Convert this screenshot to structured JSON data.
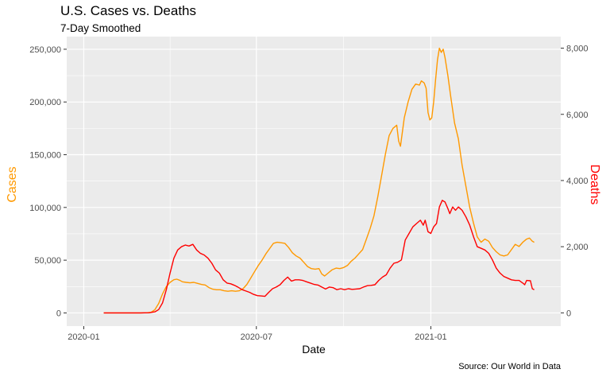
{
  "chart_data": {
    "type": "line",
    "title": "U.S. Cases vs. Deaths",
    "subtitle": "7-Day Smoothed",
    "caption": "Source:  Our World in Data",
    "xlabel": "Date",
    "ylabel_left": "Cases",
    "ylabel_right": "Deaths",
    "x_ticks": [
      "2020-01",
      "2020-07",
      "2021-01"
    ],
    "y_left_ticks": [
      "0",
      "50,000",
      "100,000",
      "150,000",
      "200,000",
      "250,000"
    ],
    "y_right_ticks": [
      "0",
      "2,000",
      "4,000",
      "6,000",
      "8,000"
    ],
    "xlim": [
      "2019-12-14",
      "2021-05-18"
    ],
    "ylim_left": [
      -12500,
      262000
    ],
    "ylim_right": [
      -400,
      8350
    ],
    "grid": true,
    "colors": {
      "cases": "#FF9900",
      "deaths": "#FF0000",
      "panel": "#EBEBEB",
      "grid": "#FFFFFF"
    },
    "series": [
      {
        "axis": "left",
        "color": "#FF9900",
        "points": [
          [
            "2020-01-22",
            0
          ],
          [
            "2020-02-15",
            0
          ],
          [
            "2020-03-01",
            5
          ],
          [
            "2020-03-08",
            150
          ],
          [
            "2020-03-12",
            600
          ],
          [
            "2020-03-16",
            3000
          ],
          [
            "2020-03-20",
            9000
          ],
          [
            "2020-03-24",
            18000
          ],
          [
            "2020-03-28",
            25000
          ],
          [
            "2020-04-01",
            29000
          ],
          [
            "2020-04-05",
            31500
          ],
          [
            "2020-04-08",
            32000
          ],
          [
            "2020-04-11",
            31000
          ],
          [
            "2020-04-14",
            29500
          ],
          [
            "2020-04-18",
            29000
          ],
          [
            "2020-04-22",
            28500
          ],
          [
            "2020-04-26",
            29000
          ],
          [
            "2020-04-30",
            28000
          ],
          [
            "2020-05-04",
            27000
          ],
          [
            "2020-05-08",
            26500
          ],
          [
            "2020-05-12",
            24000
          ],
          [
            "2020-05-16",
            22500
          ],
          [
            "2020-05-20",
            22000
          ],
          [
            "2020-05-24",
            22000
          ],
          [
            "2020-05-28",
            21000
          ],
          [
            "2020-06-01",
            20500
          ],
          [
            "2020-06-05",
            21000
          ],
          [
            "2020-06-09",
            20500
          ],
          [
            "2020-06-13",
            21000
          ],
          [
            "2020-06-17",
            23000
          ],
          [
            "2020-06-21",
            27000
          ],
          [
            "2020-06-25",
            33000
          ],
          [
            "2020-06-29",
            39000
          ],
          [
            "2020-07-03",
            45000
          ],
          [
            "2020-07-07",
            50000
          ],
          [
            "2020-07-11",
            56000
          ],
          [
            "2020-07-15",
            61000
          ],
          [
            "2020-07-19",
            66000
          ],
          [
            "2020-07-23",
            67000
          ],
          [
            "2020-07-27",
            66500
          ],
          [
            "2020-07-31",
            66000
          ],
          [
            "2020-08-04",
            62000
          ],
          [
            "2020-08-08",
            57000
          ],
          [
            "2020-08-12",
            54000
          ],
          [
            "2020-08-16",
            52000
          ],
          [
            "2020-08-20",
            48000
          ],
          [
            "2020-08-24",
            44000
          ],
          [
            "2020-08-28",
            42000
          ],
          [
            "2020-09-01",
            41500
          ],
          [
            "2020-09-05",
            42000
          ],
          [
            "2020-09-08",
            37000
          ],
          [
            "2020-09-11",
            35000
          ],
          [
            "2020-09-15",
            38000
          ],
          [
            "2020-09-19",
            41000
          ],
          [
            "2020-09-23",
            42500
          ],
          [
            "2020-09-27",
            42000
          ],
          [
            "2020-10-01",
            43000
          ],
          [
            "2020-10-05",
            45000
          ],
          [
            "2020-10-09",
            49000
          ],
          [
            "2020-10-13",
            52000
          ],
          [
            "2020-10-17",
            56000
          ],
          [
            "2020-10-21",
            60000
          ],
          [
            "2020-10-25",
            70000
          ],
          [
            "2020-10-29",
            80000
          ],
          [
            "2020-11-02",
            92000
          ],
          [
            "2020-11-06",
            110000
          ],
          [
            "2020-11-10",
            130000
          ],
          [
            "2020-11-14",
            150000
          ],
          [
            "2020-11-18",
            168000
          ],
          [
            "2020-11-22",
            175000
          ],
          [
            "2020-11-26",
            178000
          ],
          [
            "2020-11-28",
            163000
          ],
          [
            "2020-11-30",
            158000
          ],
          [
            "2020-12-04",
            185000
          ],
          [
            "2020-12-08",
            200000
          ],
          [
            "2020-12-12",
            212000
          ],
          [
            "2020-12-16",
            217000
          ],
          [
            "2020-12-20",
            216000
          ],
          [
            "2020-12-22",
            220000
          ],
          [
            "2020-12-25",
            218000
          ],
          [
            "2020-12-27",
            213000
          ],
          [
            "2020-12-29",
            190000
          ],
          [
            "2020-12-31",
            183000
          ],
          [
            "2021-01-02",
            185000
          ],
          [
            "2021-01-04",
            200000
          ],
          [
            "2021-01-06",
            221000
          ],
          [
            "2021-01-08",
            240000
          ],
          [
            "2021-01-10",
            251000
          ],
          [
            "2021-01-12",
            247000
          ],
          [
            "2021-01-14",
            250000
          ],
          [
            "2021-01-16",
            242000
          ],
          [
            "2021-01-19",
            225000
          ],
          [
            "2021-01-22",
            205000
          ],
          [
            "2021-01-26",
            180000
          ],
          [
            "2021-01-30",
            165000
          ],
          [
            "2021-02-03",
            140000
          ],
          [
            "2021-02-07",
            120000
          ],
          [
            "2021-02-11",
            100000
          ],
          [
            "2021-02-15",
            85000
          ],
          [
            "2021-02-19",
            72000
          ],
          [
            "2021-02-23",
            67000
          ],
          [
            "2021-02-27",
            70000
          ],
          [
            "2021-03-03",
            68000
          ],
          [
            "2021-03-07",
            62000
          ],
          [
            "2021-03-11",
            58000
          ],
          [
            "2021-03-15",
            55000
          ],
          [
            "2021-03-19",
            54000
          ],
          [
            "2021-03-23",
            55000
          ],
          [
            "2021-03-27",
            60000
          ],
          [
            "2021-03-31",
            65000
          ],
          [
            "2021-04-04",
            63000
          ],
          [
            "2021-04-08",
            67000
          ],
          [
            "2021-04-12",
            70000
          ],
          [
            "2021-04-15",
            71000
          ],
          [
            "2021-04-18",
            68000
          ],
          [
            "2021-04-20",
            67000
          ]
        ]
      },
      {
        "axis": "right",
        "color": "#FF0000",
        "points": [
          [
            "2020-01-22",
            0
          ],
          [
            "2020-03-01",
            0
          ],
          [
            "2020-03-10",
            5
          ],
          [
            "2020-03-16",
            30
          ],
          [
            "2020-03-20",
            100
          ],
          [
            "2020-03-24",
            300
          ],
          [
            "2020-03-28",
            700
          ],
          [
            "2020-04-01",
            1200
          ],
          [
            "2020-04-05",
            1650
          ],
          [
            "2020-04-09",
            1900
          ],
          [
            "2020-04-13",
            2000
          ],
          [
            "2020-04-17",
            2050
          ],
          [
            "2020-04-21",
            2020
          ],
          [
            "2020-04-25",
            2070
          ],
          [
            "2020-04-29",
            1900
          ],
          [
            "2020-05-03",
            1800
          ],
          [
            "2020-05-07",
            1750
          ],
          [
            "2020-05-11",
            1650
          ],
          [
            "2020-05-15",
            1500
          ],
          [
            "2020-05-19",
            1300
          ],
          [
            "2020-05-23",
            1200
          ],
          [
            "2020-05-27",
            1000
          ],
          [
            "2020-05-31",
            900
          ],
          [
            "2020-06-04",
            880
          ],
          [
            "2020-06-08",
            830
          ],
          [
            "2020-06-12",
            770
          ],
          [
            "2020-06-16",
            700
          ],
          [
            "2020-06-20",
            660
          ],
          [
            "2020-06-24",
            620
          ],
          [
            "2020-06-28",
            560
          ],
          [
            "2020-07-02",
            520
          ],
          [
            "2020-07-06",
            510
          ],
          [
            "2020-07-10",
            500
          ],
          [
            "2020-07-14",
            620
          ],
          [
            "2020-07-18",
            730
          ],
          [
            "2020-07-22",
            780
          ],
          [
            "2020-07-26",
            850
          ],
          [
            "2020-07-30",
            980
          ],
          [
            "2020-08-03",
            1080
          ],
          [
            "2020-08-07",
            960
          ],
          [
            "2020-08-11",
            1000
          ],
          [
            "2020-08-15",
            1000
          ],
          [
            "2020-08-19",
            980
          ],
          [
            "2020-08-23",
            940
          ],
          [
            "2020-08-27",
            900
          ],
          [
            "2020-08-31",
            860
          ],
          [
            "2020-09-04",
            840
          ],
          [
            "2020-09-08",
            780
          ],
          [
            "2020-09-12",
            720
          ],
          [
            "2020-09-16",
            780
          ],
          [
            "2020-09-20",
            760
          ],
          [
            "2020-09-24",
            700
          ],
          [
            "2020-09-28",
            730
          ],
          [
            "2020-10-02",
            700
          ],
          [
            "2020-10-06",
            730
          ],
          [
            "2020-10-10",
            710
          ],
          [
            "2020-10-14",
            720
          ],
          [
            "2020-10-18",
            730
          ],
          [
            "2020-10-22",
            780
          ],
          [
            "2020-10-26",
            820
          ],
          [
            "2020-10-30",
            830
          ],
          [
            "2020-11-03",
            850
          ],
          [
            "2020-11-07",
            980
          ],
          [
            "2020-11-11",
            1080
          ],
          [
            "2020-11-15",
            1150
          ],
          [
            "2020-11-19",
            1350
          ],
          [
            "2020-11-23",
            1500
          ],
          [
            "2020-11-27",
            1530
          ],
          [
            "2020-12-01",
            1600
          ],
          [
            "2020-12-05",
            2200
          ],
          [
            "2020-12-09",
            2400
          ],
          [
            "2020-12-13",
            2600
          ],
          [
            "2020-12-17",
            2700
          ],
          [
            "2020-12-21",
            2800
          ],
          [
            "2020-12-24",
            2650
          ],
          [
            "2020-12-26",
            2800
          ],
          [
            "2020-12-29",
            2450
          ],
          [
            "2021-01-01",
            2400
          ],
          [
            "2021-01-04",
            2600
          ],
          [
            "2021-01-07",
            2700
          ],
          [
            "2021-01-10",
            3200
          ],
          [
            "2021-01-13",
            3400
          ],
          [
            "2021-01-16",
            3350
          ],
          [
            "2021-01-19",
            3150
          ],
          [
            "2021-01-21",
            3000
          ],
          [
            "2021-01-24",
            3200
          ],
          [
            "2021-01-27",
            3100
          ],
          [
            "2021-01-30",
            3200
          ],
          [
            "2021-02-03",
            3100
          ],
          [
            "2021-02-07",
            2900
          ],
          [
            "2021-02-11",
            2650
          ],
          [
            "2021-02-15",
            2300
          ],
          [
            "2021-02-19",
            2000
          ],
          [
            "2021-02-23",
            1950
          ],
          [
            "2021-02-27",
            1900
          ],
          [
            "2021-03-03",
            1800
          ],
          [
            "2021-03-07",
            1600
          ],
          [
            "2021-03-11",
            1350
          ],
          [
            "2021-03-15",
            1200
          ],
          [
            "2021-03-19",
            1100
          ],
          [
            "2021-03-23",
            1050
          ],
          [
            "2021-03-27",
            1000
          ],
          [
            "2021-03-31",
            980
          ],
          [
            "2021-04-04",
            980
          ],
          [
            "2021-04-08",
            900
          ],
          [
            "2021-04-10",
            850
          ],
          [
            "2021-04-12",
            980
          ],
          [
            "2021-04-16",
            970
          ],
          [
            "2021-04-18",
            730
          ],
          [
            "2021-04-20",
            700
          ]
        ]
      }
    ]
  }
}
